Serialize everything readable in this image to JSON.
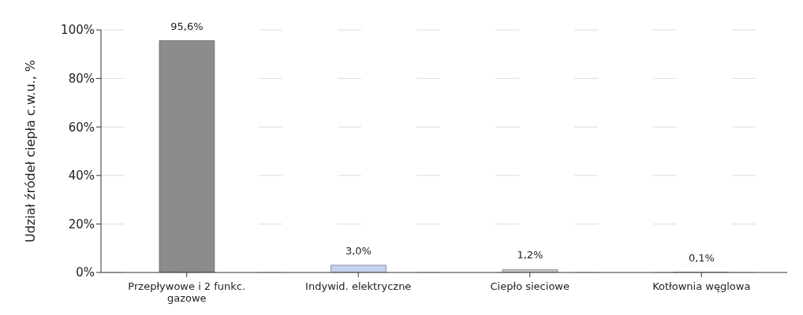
{
  "chart_data": {
    "type": "bar",
    "ylabel": "Udział źródeł ciepła c.w.u., %",
    "categories": [
      "Przepływowe i 2 funkc. gazowe",
      "Indywid. elektryczne",
      "Ciepło sieciowe",
      "Kotłownia węglowa"
    ],
    "values": [
      95.6,
      3.0,
      1.2,
      0.1
    ],
    "colors": [
      "#8c8c8c",
      "#c5d3f0",
      "#c8c8c8",
      "#b0b0b0"
    ],
    "value_labels": [
      "95,6%",
      "3,0%",
      "1,2%",
      "0,1%"
    ],
    "ylim": [
      0,
      100
    ],
    "yticks": [
      {
        "value": 0,
        "label": "0%"
      },
      {
        "value": 20,
        "label": "20%"
      },
      {
        "value": 40,
        "label": "40%"
      },
      {
        "value": 60,
        "label": "60%"
      },
      {
        "value": 80,
        "label": "80%"
      },
      {
        "value": 100,
        "label": "100%"
      }
    ],
    "grid": "y"
  }
}
